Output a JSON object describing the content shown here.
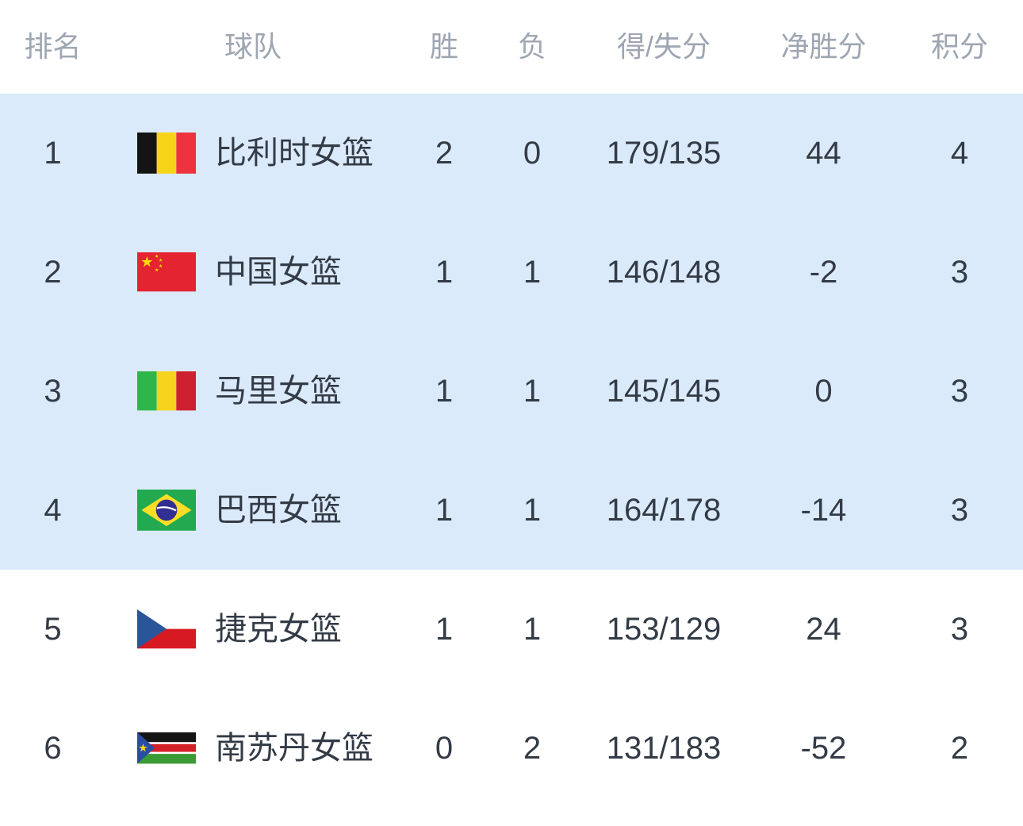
{
  "table": {
    "headers": [
      "排名",
      "球队",
      "胜",
      "负",
      "得/失分",
      "净胜分",
      "积分"
    ],
    "rows": [
      {
        "rank": "1",
        "team": "比利时女篮",
        "flag": "belgium",
        "wins": "2",
        "losses": "0",
        "score": "179/135",
        "diff": "44",
        "points": "4",
        "highlighted": true
      },
      {
        "rank": "2",
        "team": "中国女篮",
        "flag": "china",
        "wins": "1",
        "losses": "1",
        "score": "146/148",
        "diff": "-2",
        "points": "3",
        "highlighted": true
      },
      {
        "rank": "3",
        "team": "马里女篮",
        "flag": "mali",
        "wins": "1",
        "losses": "1",
        "score": "145/145",
        "diff": "0",
        "points": "3",
        "highlighted": true
      },
      {
        "rank": "4",
        "team": "巴西女篮",
        "flag": "brazil",
        "wins": "1",
        "losses": "1",
        "score": "164/178",
        "diff": "-14",
        "points": "3",
        "highlighted": true
      },
      {
        "rank": "5",
        "team": "捷克女篮",
        "flag": "czech",
        "wins": "1",
        "losses": "1",
        "score": "153/129",
        "diff": "24",
        "points": "3",
        "highlighted": false
      },
      {
        "rank": "6",
        "team": "南苏丹女篮",
        "flag": "south-sudan",
        "wins": "0",
        "losses": "2",
        "score": "131/183",
        "diff": "-52",
        "points": "2",
        "highlighted": false
      }
    ]
  },
  "colors": {
    "highlight_bg": "#dbeafa",
    "header_text": "#9ea6b2",
    "body_text": "#333b46",
    "background": "#ffffff"
  },
  "flag_icons": [
    "belgium-flag-icon",
    "china-flag-icon",
    "mali-flag-icon",
    "brazil-flag-icon",
    "czech-flag-icon",
    "south-sudan-flag-icon"
  ]
}
